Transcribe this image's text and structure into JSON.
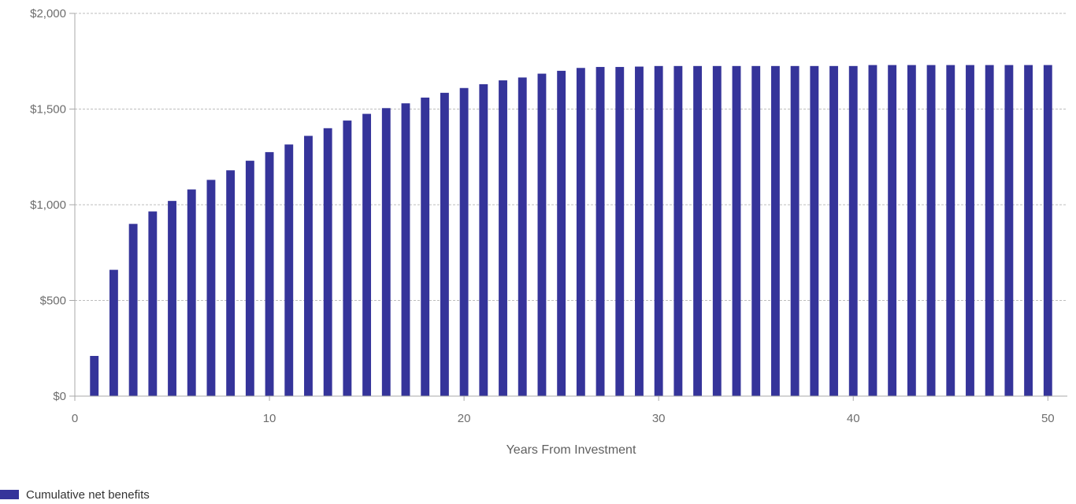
{
  "chart_data": {
    "type": "bar",
    "xlabel": "Years From Investment",
    "ylabel": "",
    "xlim": [
      0,
      51
    ],
    "ylim": [
      0,
      2000
    ],
    "x_ticks": [
      0,
      10,
      20,
      30,
      40,
      50
    ],
    "y_ticks": [
      0,
      500,
      1000,
      1500,
      2000
    ],
    "y_tick_labels": [
      "$0",
      "$500",
      "$1,000",
      "$1,500",
      "$2,000"
    ],
    "grid": "horizontal dashed",
    "legend_position": "bottom-left",
    "series": [
      {
        "name": "Cumulative net benefits",
        "color": "#35349a",
        "x": [
          1,
          2,
          3,
          4,
          5,
          6,
          7,
          8,
          9,
          10,
          11,
          12,
          13,
          14,
          15,
          16,
          17,
          18,
          19,
          20,
          21,
          22,
          23,
          24,
          25,
          26,
          27,
          28,
          29,
          30,
          31,
          32,
          33,
          34,
          35,
          36,
          37,
          38,
          39,
          40,
          41,
          42,
          43,
          44,
          45,
          46,
          47,
          48,
          49,
          50
        ],
        "values": [
          210,
          660,
          900,
          965,
          1020,
          1080,
          1130,
          1180,
          1230,
          1275,
          1315,
          1360,
          1400,
          1440,
          1475,
          1505,
          1530,
          1560,
          1585,
          1610,
          1630,
          1650,
          1665,
          1685,
          1700,
          1715,
          1720,
          1720,
          1722,
          1725,
          1725,
          1725,
          1725,
          1725,
          1725,
          1725,
          1725,
          1725,
          1725,
          1725,
          1730,
          1730,
          1730,
          1730,
          1730,
          1730,
          1730,
          1730,
          1730,
          1730
        ]
      }
    ]
  }
}
